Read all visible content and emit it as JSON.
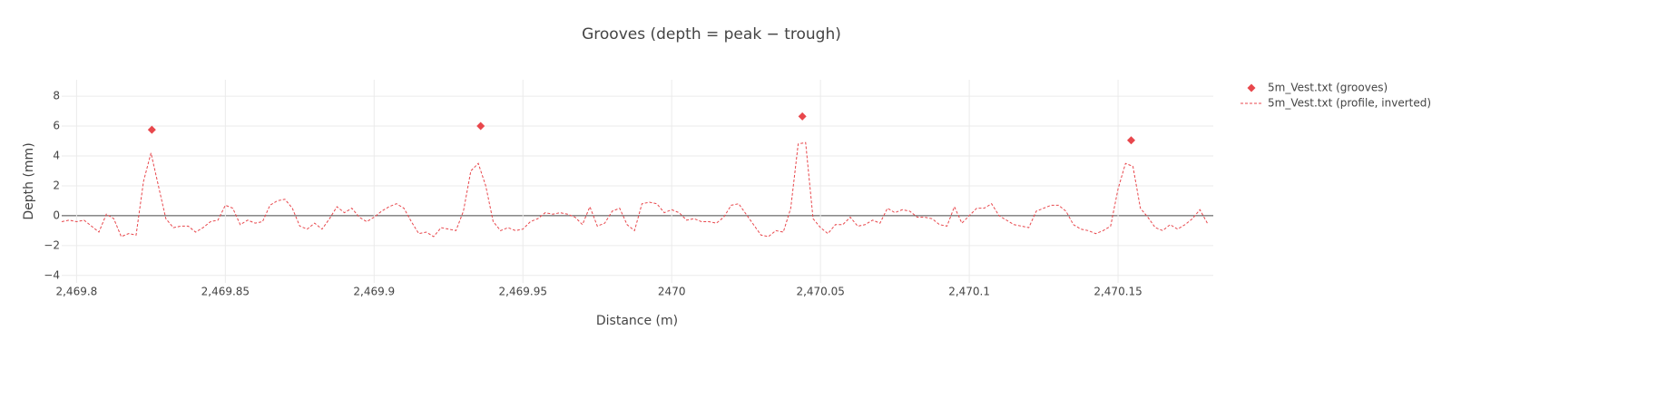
{
  "chart_data": {
    "type": "scatter",
    "title": "Grooves (depth = peak − trough)",
    "x_label": "Distance (m)",
    "y_label": "Depth (mm)",
    "xlim": [
      2469.795,
      2470.182
    ],
    "ylim": [
      -4.5,
      9.1
    ],
    "xticks": [
      {
        "value": 2469.8,
        "label": "2,469.8"
      },
      {
        "value": 2469.85,
        "label": "2,469.85"
      },
      {
        "value": 2469.9,
        "label": "2,469.9"
      },
      {
        "value": 2469.95,
        "label": "2,469.95"
      },
      2470,
      {
        "value": 2470.05,
        "label": "2,470.05"
      },
      {
        "value": 2470.1,
        "label": "2,470.1"
      },
      {
        "value": 2470.15,
        "label": "2,470.15"
      }
    ],
    "yticks": [
      {
        "value": -4,
        "label": "−4"
      },
      {
        "value": -2,
        "label": "−2"
      },
      0,
      2,
      4,
      6,
      8
    ],
    "grid": true,
    "legend": "top-right",
    "series": [
      {
        "name": "5m_Vest.txt (grooves)",
        "mode": "markers",
        "color": "#e8474c",
        "x": [
          2469.8253,
          2469.9358,
          2470.0439,
          2470.1544
        ],
        "values": [
          5.75,
          6.0,
          6.65,
          5.05
        ]
      },
      {
        "name": "5m_Vest.txt (profile, inverted)",
        "mode": "lines",
        "dash": true,
        "color": "#e8474c",
        "x": [
          2469.795,
          2469.7975,
          2469.8,
          2469.8025,
          2469.805,
          2469.8075,
          2469.81,
          2469.8125,
          2469.815,
          2469.8175,
          2469.82,
          2469.8225,
          2469.825,
          2469.8275,
          2469.83,
          2469.8325,
          2469.835,
          2469.8375,
          2469.84,
          2469.8425,
          2469.845,
          2469.8475,
          2469.85,
          2469.8525,
          2469.855,
          2469.8575,
          2469.86,
          2469.8625,
          2469.865,
          2469.8675,
          2469.87,
          2469.8725,
          2469.875,
          2469.8775,
          2469.88,
          2469.8825,
          2469.885,
          2469.8875,
          2469.89,
          2469.8925,
          2469.895,
          2469.8975,
          2469.9,
          2469.9025,
          2469.905,
          2469.9075,
          2469.91,
          2469.9125,
          2469.915,
          2469.9175,
          2469.92,
          2469.9225,
          2469.925,
          2469.9275,
          2469.93,
          2469.9325,
          2469.935,
          2469.9375,
          2469.94,
          2469.9425,
          2469.945,
          2469.9475,
          2469.95,
          2469.9525,
          2469.955,
          2469.9575,
          2469.96,
          2469.9625,
          2469.965,
          2469.9675,
          2469.97,
          2469.9725,
          2469.975,
          2469.9775,
          2469.98,
          2469.9825,
          2469.985,
          2469.9875,
          2469.99,
          2469.9925,
          2469.995,
          2469.9975,
          2470.0,
          2470.0025,
          2470.005,
          2470.0075,
          2470.01,
          2470.0125,
          2470.015,
          2470.0175,
          2470.02,
          2470.0225,
          2470.025,
          2470.0275,
          2470.03,
          2470.0325,
          2470.035,
          2470.0375,
          2470.04,
          2470.0425,
          2470.045,
          2470.0475,
          2470.05,
          2470.0525,
          2470.055,
          2470.0575,
          2470.06,
          2470.0625,
          2470.065,
          2470.0675,
          2470.07,
          2470.0725,
          2470.075,
          2470.0775,
          2470.08,
          2470.0825,
          2470.085,
          2470.0875,
          2470.09,
          2470.0925,
          2470.095,
          2470.0975,
          2470.1,
          2470.1025,
          2470.105,
          2470.1075,
          2470.11,
          2470.1125,
          2470.115,
          2470.1175,
          2470.12,
          2470.1225,
          2470.125,
          2470.1275,
          2470.13,
          2470.1325,
          2470.135,
          2470.1375,
          2470.14,
          2470.1425,
          2470.145,
          2470.1475,
          2470.15,
          2470.1525,
          2470.155,
          2470.1575,
          2470.16,
          2470.1625,
          2470.165,
          2470.1675,
          2470.17,
          2470.1725,
          2470.175,
          2470.1775,
          2470.18
        ],
        "values": [
          -0.4,
          -0.3,
          -0.4,
          -0.3,
          -0.7,
          -1.1,
          0.1,
          -0.2,
          -1.4,
          -1.2,
          -1.3,
          2.3,
          4.2,
          2.0,
          -0.2,
          -0.8,
          -0.7,
          -0.7,
          -1.1,
          -0.8,
          -0.4,
          -0.3,
          0.7,
          0.5,
          -0.6,
          -0.3,
          -0.5,
          -0.4,
          0.7,
          1.0,
          1.1,
          0.5,
          -0.7,
          -0.9,
          -0.5,
          -0.9,
          -0.2,
          0.6,
          0.2,
          0.5,
          -0.1,
          -0.4,
          -0.1,
          0.3,
          0.6,
          0.8,
          0.5,
          -0.4,
          -1.2,
          -1.1,
          -1.4,
          -0.8,
          -0.9,
          -1.0,
          0.3,
          3.0,
          3.5,
          2.0,
          -0.4,
          -1.0,
          -0.8,
          -1.0,
          -0.9,
          -0.4,
          -0.2,
          0.2,
          0.1,
          0.2,
          0.1,
          -0.1,
          -0.6,
          0.6,
          -0.7,
          -0.5,
          0.3,
          0.5,
          -0.6,
          -1.0,
          0.8,
          0.9,
          0.8,
          0.2,
          0.4,
          0.2,
          -0.3,
          -0.2,
          -0.4,
          -0.4,
          -0.5,
          -0.1,
          0.7,
          0.8,
          0.1,
          -0.6,
          -1.3,
          -1.4,
          -1.0,
          -1.1,
          0.5,
          4.8,
          4.9,
          -0.2,
          -0.8,
          -1.2,
          -0.6,
          -0.6,
          -0.1,
          -0.7,
          -0.6,
          -0.3,
          -0.5,
          0.5,
          0.2,
          0.4,
          0.3,
          -0.1,
          -0.1,
          -0.2,
          -0.6,
          -0.7,
          0.6,
          -0.5,
          0.0,
          0.5,
          0.5,
          0.8,
          0.0,
          -0.3,
          -0.6,
          -0.7,
          -0.8,
          0.3,
          0.5,
          0.7,
          0.7,
          0.3,
          -0.6,
          -0.9,
          -1.0,
          -1.2,
          -1.0,
          -0.7,
          1.8,
          3.5,
          3.3,
          0.5,
          -0.1,
          -0.8,
          -1.0,
          -0.6,
          -0.9,
          -0.6,
          -0.2,
          0.4,
          -0.5
        ]
      }
    ]
  }
}
